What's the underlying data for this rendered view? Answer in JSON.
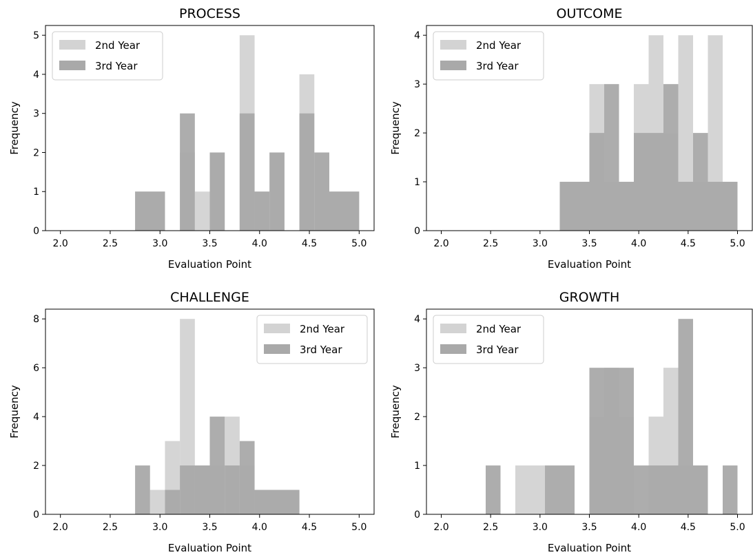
{
  "figure": {
    "colors": {
      "2nd Year": "#d3d3d3",
      "3rd Year": "#a9a9a9"
    },
    "bar_opacity": 0.95
  },
  "chart_data": [
    {
      "type": "bar",
      "title": "PROCESS",
      "xlabel": "Evaluation Point",
      "ylabel": "Frequency",
      "xlim": [
        1.85,
        5.15
      ],
      "ylim": [
        0,
        5.25
      ],
      "xticks": [
        2.0,
        2.5,
        3.0,
        3.5,
        4.0,
        4.5,
        5.0
      ],
      "xtick_labels": [
        "2.0",
        "2.5",
        "3.0",
        "3.5",
        "4.0",
        "4.5",
        "5.0"
      ],
      "yticks": [
        0,
        1,
        2,
        3,
        4,
        5
      ],
      "ytick_labels": [
        "0",
        "1",
        "2",
        "3",
        "4",
        "5"
      ],
      "legend": {
        "position": "upper-left",
        "entries": [
          "2nd Year",
          "3rd Year"
        ]
      },
      "series": [
        {
          "name": "2nd Year",
          "bins": [
            [
              2.75,
              3.05,
              1
            ],
            [
              3.2,
              3.35,
              2
            ],
            [
              3.35,
              3.5,
              1
            ],
            [
              3.5,
              3.65,
              2
            ],
            [
              3.8,
              3.95,
              5
            ],
            [
              3.95,
              4.1,
              1
            ],
            [
              4.1,
              4.25,
              2
            ],
            [
              4.4,
              4.55,
              4
            ],
            [
              4.55,
              4.7,
              2
            ],
            [
              4.7,
              5.0,
              1
            ]
          ]
        },
        {
          "name": "3rd Year",
          "bins": [
            [
              2.75,
              3.05,
              1
            ],
            [
              3.2,
              3.35,
              3
            ],
            [
              3.5,
              3.65,
              2
            ],
            [
              3.8,
              3.95,
              3
            ],
            [
              3.95,
              4.1,
              1
            ],
            [
              4.1,
              4.25,
              2
            ],
            [
              4.4,
              4.55,
              3
            ],
            [
              4.55,
              4.7,
              2
            ],
            [
              4.7,
              5.0,
              1
            ]
          ]
        }
      ]
    },
    {
      "type": "bar",
      "title": "OUTCOME",
      "xlabel": "Evaluation Point",
      "ylabel": "Frequency",
      "xlim": [
        1.85,
        5.15
      ],
      "ylim": [
        0,
        4.2
      ],
      "xticks": [
        2.0,
        2.5,
        3.0,
        3.5,
        4.0,
        4.5,
        5.0
      ],
      "xtick_labels": [
        "2.0",
        "2.5",
        "3.0",
        "3.5",
        "4.0",
        "4.5",
        "5.0"
      ],
      "yticks": [
        0,
        1,
        2,
        3,
        4
      ],
      "ytick_labels": [
        "0",
        "1",
        "2",
        "3",
        "4"
      ],
      "legend": {
        "position": "upper-left",
        "entries": [
          "2nd Year",
          "3rd Year"
        ]
      },
      "series": [
        {
          "name": "2nd Year",
          "bins": [
            [
              3.2,
              3.5,
              1
            ],
            [
              3.5,
              3.65,
              3
            ],
            [
              3.65,
              3.8,
              1
            ],
            [
              3.8,
              3.95,
              1
            ],
            [
              3.95,
              4.1,
              3
            ],
            [
              4.1,
              4.25,
              4
            ],
            [
              4.25,
              4.4,
              2
            ],
            [
              4.4,
              4.55,
              4
            ],
            [
              4.55,
              4.7,
              1
            ],
            [
              4.7,
              4.85,
              4
            ],
            [
              4.85,
              5.0,
              1
            ]
          ]
        },
        {
          "name": "3rd Year",
          "bins": [
            [
              3.2,
              3.5,
              1
            ],
            [
              3.5,
              3.65,
              2
            ],
            [
              3.65,
              3.8,
              3
            ],
            [
              3.8,
              3.95,
              1
            ],
            [
              3.95,
              4.25,
              2
            ],
            [
              4.25,
              4.4,
              3
            ],
            [
              4.4,
              4.55,
              1
            ],
            [
              4.55,
              4.7,
              2
            ],
            [
              4.7,
              5.0,
              1
            ]
          ]
        }
      ]
    },
    {
      "type": "bar",
      "title": "CHALLENGE",
      "xlabel": "Evaluation Point",
      "ylabel": "Frequency",
      "xlim": [
        1.85,
        5.15
      ],
      "ylim": [
        0,
        8.4
      ],
      "xticks": [
        2.0,
        2.5,
        3.0,
        3.5,
        4.0,
        4.5,
        5.0
      ],
      "xtick_labels": [
        "2.0",
        "2.5",
        "3.0",
        "3.5",
        "4.0",
        "4.5",
        "5.0"
      ],
      "yticks": [
        0,
        2,
        4,
        6,
        8
      ],
      "ytick_labels": [
        "0",
        "2",
        "4",
        "6",
        "8"
      ],
      "legend": {
        "position": "upper-right",
        "entries": [
          "2nd Year",
          "3rd Year"
        ]
      },
      "series": [
        {
          "name": "2nd Year",
          "bins": [
            [
              2.9,
              3.05,
              1
            ],
            [
              3.05,
              3.2,
              3
            ],
            [
              3.2,
              3.35,
              8
            ],
            [
              3.35,
              3.5,
              2
            ],
            [
              3.5,
              3.65,
              2
            ],
            [
              3.65,
              3.8,
              4
            ],
            [
              3.8,
              3.95,
              2
            ],
            [
              3.95,
              4.25,
              1
            ],
            [
              4.25,
              4.4,
              1
            ]
          ]
        },
        {
          "name": "3rd Year",
          "bins": [
            [
              2.75,
              2.9,
              2
            ],
            [
              3.05,
              3.2,
              1
            ],
            [
              3.2,
              3.5,
              2
            ],
            [
              3.5,
              3.65,
              4
            ],
            [
              3.65,
              3.8,
              2
            ],
            [
              3.8,
              3.95,
              3
            ],
            [
              3.95,
              4.4,
              1
            ]
          ]
        }
      ]
    },
    {
      "type": "bar",
      "title": "GROWTH",
      "xlabel": "Evaluation Point",
      "ylabel": "Frequency",
      "xlim": [
        1.85,
        5.15
      ],
      "ylim": [
        0,
        4.2
      ],
      "xticks": [
        2.0,
        2.5,
        3.0,
        3.5,
        4.0,
        4.5,
        5.0
      ],
      "xtick_labels": [
        "2.0",
        "2.5",
        "3.0",
        "3.5",
        "4.0",
        "4.5",
        "5.0"
      ],
      "yticks": [
        0,
        1,
        2,
        3,
        4
      ],
      "ytick_labels": [
        "0",
        "1",
        "2",
        "3",
        "4"
      ],
      "legend": {
        "position": "upper-left",
        "entries": [
          "2nd Year",
          "3rd Year"
        ]
      },
      "series": [
        {
          "name": "2nd Year",
          "bins": [
            [
              2.75,
              3.05,
              1
            ],
            [
              3.5,
              3.65,
              2
            ],
            [
              3.65,
              3.8,
              3
            ],
            [
              3.8,
              3.95,
              2
            ],
            [
              4.1,
              4.25,
              2
            ],
            [
              4.25,
              4.4,
              3
            ],
            [
              4.4,
              4.55,
              1
            ],
            [
              4.55,
              4.7,
              1
            ]
          ]
        },
        {
          "name": "3rd Year",
          "bins": [
            [
              2.45,
              2.6,
              1
            ],
            [
              3.05,
              3.35,
              1
            ],
            [
              3.5,
              3.95,
              3
            ],
            [
              3.95,
              4.25,
              1
            ],
            [
              4.25,
              4.4,
              1
            ],
            [
              4.4,
              4.55,
              4
            ],
            [
              4.55,
              4.7,
              1
            ],
            [
              4.85,
              5.0,
              1
            ]
          ]
        }
      ]
    }
  ]
}
